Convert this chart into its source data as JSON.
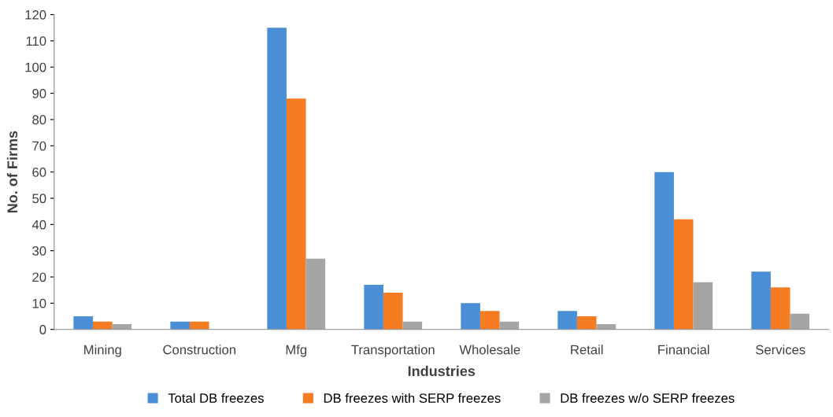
{
  "chart_data": {
    "type": "bar",
    "xlabel": "Industries",
    "ylabel": "No. of Firms",
    "categories": [
      "Mining",
      "Construction",
      "Mfg",
      "Transportation",
      "Wholesale",
      "Retail",
      "Financial",
      "Services"
    ],
    "series": [
      {
        "name": "Total DB freezes",
        "color": "#4a8fd6",
        "values": [
          5,
          3,
          115,
          17,
          10,
          7,
          60,
          22
        ]
      },
      {
        "name": "DB freezes with SERP freezes",
        "color": "#f57c21",
        "values": [
          3,
          3,
          88,
          14,
          7,
          5,
          42,
          16
        ]
      },
      {
        "name": "DB freezes w/o SERP freezes",
        "color": "#a5a5a5",
        "values": [
          2,
          0,
          27,
          3,
          3,
          2,
          18,
          6
        ]
      }
    ],
    "ylim": [
      0,
      120
    ],
    "yticks": [
      0,
      10,
      20,
      30,
      40,
      50,
      60,
      70,
      80,
      90,
      100,
      110,
      120
    ],
    "grid": false,
    "legend": "bottom"
  }
}
